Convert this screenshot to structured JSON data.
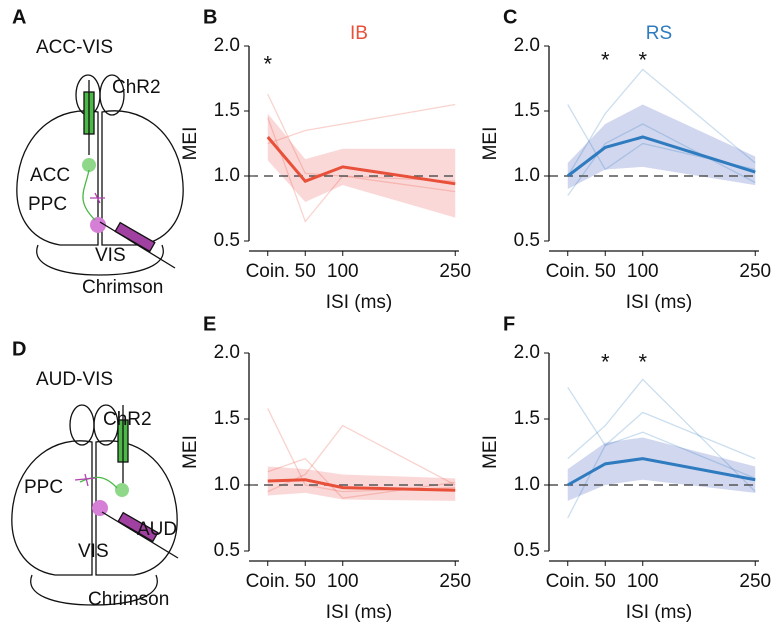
{
  "diagrams": [
    {
      "letter": "A",
      "title": "ACC-VIS",
      "labels": [
        "ChR2",
        "ACC",
        "PPC",
        "VIS",
        "Chrimson"
      ]
    },
    {
      "letter": "D",
      "title": "AUD-VIS",
      "labels": [
        "ChR2",
        "PPC",
        "AUD",
        "VIS",
        "Chrimson"
      ]
    }
  ],
  "chart_data": [
    {
      "type": "line",
      "letter": "B",
      "title": "IB",
      "xlabel": "ISI (ms)",
      "ylabel": "MEI",
      "x": [
        0,
        50,
        100,
        250
      ],
      "xlim": [
        -25,
        255
      ],
      "ylim": [
        0.5,
        2.0
      ],
      "xticks": [
        {
          "value": 0,
          "label": "Coin."
        },
        50,
        100,
        250
      ],
      "yticks": [
        0.5,
        {
          "value": 1,
          "label": "1.0"
        },
        1.5,
        {
          "value": 2,
          "label": "2.0"
        }
      ],
      "reference_line": 1,
      "series": [
        {
          "color": "#e8503a",
          "values": [
            1.3,
            0.96,
            1.07,
            0.94
          ]
        }
      ],
      "band": {
        "color": "#f7a8a8",
        "lower": [
          1.12,
          0.8,
          0.93,
          0.68
        ],
        "upper": [
          1.48,
          1.13,
          1.21,
          1.21
        ]
      },
      "traces": [
        [
          1.63,
          1.02,
          1.0,
          0.96
        ],
        [
          1.45,
          0.65,
          1.0,
          0.88
        ],
        [
          1.25,
          1.35,
          1.4,
          1.55
        ]
      ],
      "annotations": [
        {
          "text": "*",
          "x": 0,
          "y": 1.85
        }
      ]
    },
    {
      "type": "line",
      "letter": "C",
      "title": "RS",
      "xlabel": "ISI (ms)",
      "ylabel": "MEI",
      "x": [
        0,
        50,
        100,
        250
      ],
      "xlim": [
        -25,
        255
      ],
      "ylim": [
        0.5,
        2.0
      ],
      "xticks": [
        {
          "value": 0,
          "label": "Coin."
        },
        50,
        100,
        250
      ],
      "yticks": [
        0.5,
        {
          "value": 1,
          "label": "1.0"
        },
        1.5,
        {
          "value": 2,
          "label": "2.0"
        }
      ],
      "reference_line": 1,
      "series": [
        {
          "color": "#2f7bbf",
          "values": [
            1.0,
            1.22,
            1.3,
            1.03
          ]
        }
      ],
      "band": {
        "color": "#9aa6dc",
        "lower": [
          0.9,
          1.05,
          1.07,
          0.93
        ],
        "upper": [
          1.1,
          1.4,
          1.55,
          1.15
        ]
      },
      "traces": [
        [
          1.0,
          1.48,
          1.82,
          1.1
        ],
        [
          1.55,
          1.05,
          1.25,
          1.05
        ],
        [
          0.85,
          1.25,
          1.4,
          0.95
        ]
      ],
      "annotations": [
        {
          "text": "*",
          "x": 50,
          "y": 1.88
        },
        {
          "text": "*",
          "x": 100,
          "y": 1.88
        }
      ]
    },
    {
      "type": "line",
      "letter": "E",
      "xlabel": "ISI (ms)",
      "ylabel": "MEI",
      "x": [
        0,
        50,
        100,
        250
      ],
      "xlim": [
        -25,
        255
      ],
      "ylim": [
        0.5,
        2.0
      ],
      "xticks": [
        {
          "value": 0,
          "label": "Coin."
        },
        50,
        100,
        250
      ],
      "yticks": [
        0.5,
        {
          "value": 1,
          "label": "1.0"
        },
        1.5,
        {
          "value": 2,
          "label": "2.0"
        }
      ],
      "reference_line": 1,
      "series": [
        {
          "color": "#e8503a",
          "values": [
            1.03,
            1.04,
            0.98,
            0.96
          ]
        }
      ],
      "band": {
        "color": "#f7a8a8",
        "lower": [
          0.92,
          0.94,
          0.89,
          0.88
        ],
        "upper": [
          1.14,
          1.12,
          1.08,
          1.05
        ]
      },
      "traces": [
        [
          1.58,
          1.0,
          0.95,
          0.98
        ],
        [
          0.95,
          1.08,
          1.45,
          1.0
        ],
        [
          1.1,
          1.2,
          0.9,
          1.02
        ]
      ],
      "annotations": []
    },
    {
      "type": "line",
      "letter": "F",
      "xlabel": "ISI (ms)",
      "ylabel": "MEI",
      "x": [
        0,
        50,
        100,
        250
      ],
      "xlim": [
        -25,
        255
      ],
      "ylim": [
        0.5,
        2.0
      ],
      "xticks": [
        {
          "value": 0,
          "label": "Coin."
        },
        50,
        100,
        250
      ],
      "yticks": [
        0.5,
        {
          "value": 1,
          "label": "1.0"
        },
        1.5,
        {
          "value": 2,
          "label": "2.0"
        }
      ],
      "reference_line": 1,
      "series": [
        {
          "color": "#2f7bbf",
          "values": [
            1.0,
            1.16,
            1.2,
            1.04
          ]
        }
      ],
      "band": {
        "color": "#9aa6dc",
        "lower": [
          0.88,
          1.0,
          1.04,
          0.94
        ],
        "upper": [
          1.12,
          1.32,
          1.36,
          1.14
        ]
      },
      "traces": [
        [
          1.74,
          1.3,
          1.55,
          1.2
        ],
        [
          0.75,
          1.3,
          1.4,
          1.05
        ],
        [
          1.2,
          1.45,
          1.8,
          0.95
        ]
      ],
      "annotations": [
        {
          "text": "*",
          "x": 50,
          "y": 1.92
        },
        {
          "text": "*",
          "x": 100,
          "y": 1.92
        }
      ]
    }
  ]
}
